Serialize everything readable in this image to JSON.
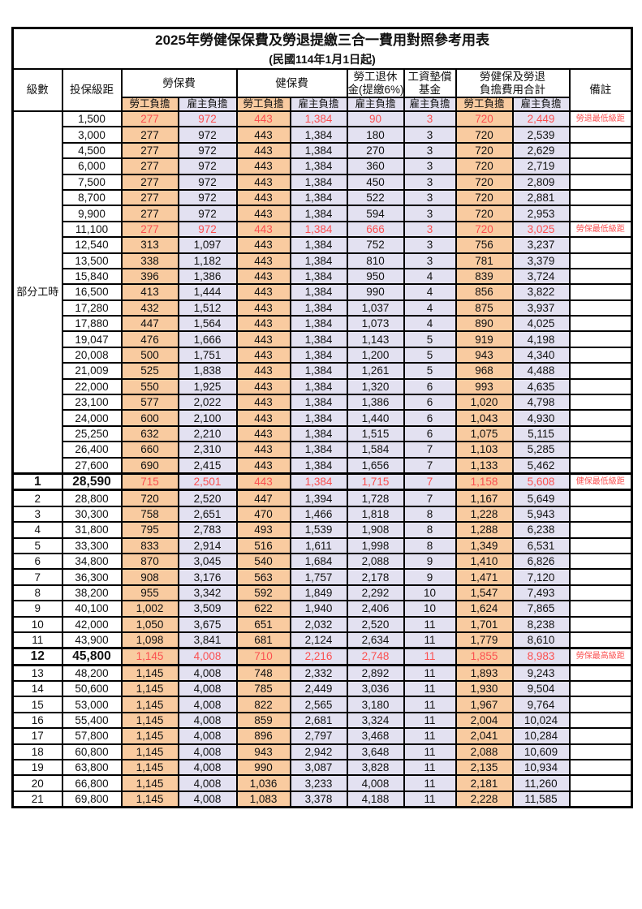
{
  "title": "2025年勞健保保費及勞退提繳三合一費用對照參考用表",
  "subtitle": "(民國114年1月1日起)",
  "colors": {
    "worker_fill": "#F9CBA0",
    "employer_fill": "#E3E1F1",
    "highlight_text": "#FB5050",
    "border": "#000000"
  },
  "table": {
    "header": {
      "level": "級數",
      "bracket": "投保級距",
      "labor_insurance": "勞保費",
      "health_insurance": "健保費",
      "pension_line1": "勞工退休",
      "pension_line2": "金(提繳6%)",
      "wage_fund_line1": "工資墊償",
      "wage_fund_line2": "基金",
      "total_line1": "勞健保及勞退",
      "total_line2": "負擔費用合計",
      "remark": "備註",
      "worker": "勞工負擔",
      "employer": "雇主負擔"
    },
    "part_time_label": "部分工時",
    "part_time_rowspan": 23,
    "rows": [
      {
        "level": "",
        "bracket": "1,500",
        "values": [
          "277",
          "972",
          "443",
          "1,384",
          "90",
          "3",
          "720",
          "2,449"
        ],
        "remark": "勞退最低級距",
        "red": true,
        "em": false
      },
      {
        "level": "",
        "bracket": "3,000",
        "values": [
          "277",
          "972",
          "443",
          "1,384",
          "180",
          "3",
          "720",
          "2,539"
        ],
        "remark": "",
        "red": false,
        "em": false
      },
      {
        "level": "",
        "bracket": "4,500",
        "values": [
          "277",
          "972",
          "443",
          "1,384",
          "270",
          "3",
          "720",
          "2,629"
        ],
        "remark": "",
        "red": false,
        "em": false
      },
      {
        "level": "",
        "bracket": "6,000",
        "values": [
          "277",
          "972",
          "443",
          "1,384",
          "360",
          "3",
          "720",
          "2,719"
        ],
        "remark": "",
        "red": false,
        "em": false
      },
      {
        "level": "",
        "bracket": "7,500",
        "values": [
          "277",
          "972",
          "443",
          "1,384",
          "450",
          "3",
          "720",
          "2,809"
        ],
        "remark": "",
        "red": false,
        "em": false
      },
      {
        "level": "",
        "bracket": "8,700",
        "values": [
          "277",
          "972",
          "443",
          "1,384",
          "522",
          "3",
          "720",
          "2,881"
        ],
        "remark": "",
        "red": false,
        "em": false
      },
      {
        "level": "",
        "bracket": "9,900",
        "values": [
          "277",
          "972",
          "443",
          "1,384",
          "594",
          "3",
          "720",
          "2,953"
        ],
        "remark": "",
        "red": false,
        "em": false
      },
      {
        "level": "",
        "bracket": "11,100",
        "values": [
          "277",
          "972",
          "443",
          "1,384",
          "666",
          "3",
          "720",
          "3,025"
        ],
        "remark": "勞保最低級距",
        "red": true,
        "em": false
      },
      {
        "level": "",
        "bracket": "12,540",
        "values": [
          "313",
          "1,097",
          "443",
          "1,384",
          "752",
          "3",
          "756",
          "3,237"
        ],
        "remark": "",
        "red": false,
        "em": false
      },
      {
        "level": "",
        "bracket": "13,500",
        "values": [
          "338",
          "1,182",
          "443",
          "1,384",
          "810",
          "3",
          "781",
          "3,379"
        ],
        "remark": "",
        "red": false,
        "em": false
      },
      {
        "level": "",
        "bracket": "15,840",
        "values": [
          "396",
          "1,386",
          "443",
          "1,384",
          "950",
          "4",
          "839",
          "3,724"
        ],
        "remark": "",
        "red": false,
        "em": false
      },
      {
        "level": "",
        "bracket": "16,500",
        "values": [
          "413",
          "1,444",
          "443",
          "1,384",
          "990",
          "4",
          "856",
          "3,822"
        ],
        "remark": "",
        "red": false,
        "em": false
      },
      {
        "level": "",
        "bracket": "17,280",
        "values": [
          "432",
          "1,512",
          "443",
          "1,384",
          "1,037",
          "4",
          "875",
          "3,937"
        ],
        "remark": "",
        "red": false,
        "em": false
      },
      {
        "level": "",
        "bracket": "17,880",
        "values": [
          "447",
          "1,564",
          "443",
          "1,384",
          "1,073",
          "4",
          "890",
          "4,025"
        ],
        "remark": "",
        "red": false,
        "em": false
      },
      {
        "level": "",
        "bracket": "19,047",
        "values": [
          "476",
          "1,666",
          "443",
          "1,384",
          "1,143",
          "5",
          "919",
          "4,198"
        ],
        "remark": "",
        "red": false,
        "em": false
      },
      {
        "level": "",
        "bracket": "20,008",
        "values": [
          "500",
          "1,751",
          "443",
          "1,384",
          "1,200",
          "5",
          "943",
          "4,340"
        ],
        "remark": "",
        "red": false,
        "em": false
      },
      {
        "level": "",
        "bracket": "21,009",
        "values": [
          "525",
          "1,838",
          "443",
          "1,384",
          "1,261",
          "5",
          "968",
          "4,488"
        ],
        "remark": "",
        "red": false,
        "em": false
      },
      {
        "level": "",
        "bracket": "22,000",
        "values": [
          "550",
          "1,925",
          "443",
          "1,384",
          "1,320",
          "6",
          "993",
          "4,635"
        ],
        "remark": "",
        "red": false,
        "em": false
      },
      {
        "level": "",
        "bracket": "23,100",
        "values": [
          "577",
          "2,022",
          "443",
          "1,384",
          "1,386",
          "6",
          "1,020",
          "4,798"
        ],
        "remark": "",
        "red": false,
        "em": false
      },
      {
        "level": "",
        "bracket": "24,000",
        "values": [
          "600",
          "2,100",
          "443",
          "1,384",
          "1,440",
          "6",
          "1,043",
          "4,930"
        ],
        "remark": "",
        "red": false,
        "em": false
      },
      {
        "level": "",
        "bracket": "25,250",
        "values": [
          "632",
          "2,210",
          "443",
          "1,384",
          "1,515",
          "6",
          "1,075",
          "5,115"
        ],
        "remark": "",
        "red": false,
        "em": false
      },
      {
        "level": "",
        "bracket": "26,400",
        "values": [
          "660",
          "2,310",
          "443",
          "1,384",
          "1,584",
          "7",
          "1,103",
          "5,285"
        ],
        "remark": "",
        "red": false,
        "em": false
      },
      {
        "level": "",
        "bracket": "27,600",
        "values": [
          "690",
          "2,415",
          "443",
          "1,384",
          "1,656",
          "7",
          "1,133",
          "5,462"
        ],
        "remark": "",
        "red": false,
        "em": false
      },
      {
        "level": "1",
        "bracket": "28,590",
        "values": [
          "715",
          "2,501",
          "443",
          "1,384",
          "1,715",
          "7",
          "1,158",
          "5,608"
        ],
        "remark": "健保最低級距",
        "red": true,
        "em": true
      },
      {
        "level": "2",
        "bracket": "28,800",
        "values": [
          "720",
          "2,520",
          "447",
          "1,394",
          "1,728",
          "7",
          "1,167",
          "5,649"
        ],
        "remark": "",
        "red": false,
        "em": false
      },
      {
        "level": "3",
        "bracket": "30,300",
        "values": [
          "758",
          "2,651",
          "470",
          "1,466",
          "1,818",
          "8",
          "1,228",
          "5,943"
        ],
        "remark": "",
        "red": false,
        "em": false
      },
      {
        "level": "4",
        "bracket": "31,800",
        "values": [
          "795",
          "2,783",
          "493",
          "1,539",
          "1,908",
          "8",
          "1,288",
          "6,238"
        ],
        "remark": "",
        "red": false,
        "em": false
      },
      {
        "level": "5",
        "bracket": "33,300",
        "values": [
          "833",
          "2,914",
          "516",
          "1,611",
          "1,998",
          "8",
          "1,349",
          "6,531"
        ],
        "remark": "",
        "red": false,
        "em": false
      },
      {
        "level": "6",
        "bracket": "34,800",
        "values": [
          "870",
          "3,045",
          "540",
          "1,684",
          "2,088",
          "9",
          "1,410",
          "6,826"
        ],
        "remark": "",
        "red": false,
        "em": false
      },
      {
        "level": "7",
        "bracket": "36,300",
        "values": [
          "908",
          "3,176",
          "563",
          "1,757",
          "2,178",
          "9",
          "1,471",
          "7,120"
        ],
        "remark": "",
        "red": false,
        "em": false
      },
      {
        "level": "8",
        "bracket": "38,200",
        "values": [
          "955",
          "3,342",
          "592",
          "1,849",
          "2,292",
          "10",
          "1,547",
          "7,493"
        ],
        "remark": "",
        "red": false,
        "em": false
      },
      {
        "level": "9",
        "bracket": "40,100",
        "values": [
          "1,002",
          "3,509",
          "622",
          "1,940",
          "2,406",
          "10",
          "1,624",
          "7,865"
        ],
        "remark": "",
        "red": false,
        "em": false
      },
      {
        "level": "10",
        "bracket": "42,000",
        "values": [
          "1,050",
          "3,675",
          "651",
          "2,032",
          "2,520",
          "11",
          "1,701",
          "8,238"
        ],
        "remark": "",
        "red": false,
        "em": false
      },
      {
        "level": "11",
        "bracket": "43,900",
        "values": [
          "1,098",
          "3,841",
          "681",
          "2,124",
          "2,634",
          "11",
          "1,779",
          "8,610"
        ],
        "remark": "",
        "red": false,
        "em": false
      },
      {
        "level": "12",
        "bracket": "45,800",
        "values": [
          "1,145",
          "4,008",
          "710",
          "2,216",
          "2,748",
          "11",
          "1,855",
          "8,983"
        ],
        "remark": "勞保最高級距",
        "red": true,
        "em": true
      },
      {
        "level": "13",
        "bracket": "48,200",
        "values": [
          "1,145",
          "4,008",
          "748",
          "2,332",
          "2,892",
          "11",
          "1,893",
          "9,243"
        ],
        "remark": "",
        "red": false,
        "em": false
      },
      {
        "level": "14",
        "bracket": "50,600",
        "values": [
          "1,145",
          "4,008",
          "785",
          "2,449",
          "3,036",
          "11",
          "1,930",
          "9,504"
        ],
        "remark": "",
        "red": false,
        "em": false
      },
      {
        "level": "15",
        "bracket": "53,000",
        "values": [
          "1,145",
          "4,008",
          "822",
          "2,565",
          "3,180",
          "11",
          "1,967",
          "9,764"
        ],
        "remark": "",
        "red": false,
        "em": false
      },
      {
        "level": "16",
        "bracket": "55,400",
        "values": [
          "1,145",
          "4,008",
          "859",
          "2,681",
          "3,324",
          "11",
          "2,004",
          "10,024"
        ],
        "remark": "",
        "red": false,
        "em": false
      },
      {
        "level": "17",
        "bracket": "57,800",
        "values": [
          "1,145",
          "4,008",
          "896",
          "2,797",
          "3,468",
          "11",
          "2,041",
          "10,284"
        ],
        "remark": "",
        "red": false,
        "em": false
      },
      {
        "level": "18",
        "bracket": "60,800",
        "values": [
          "1,145",
          "4,008",
          "943",
          "2,942",
          "3,648",
          "11",
          "2,088",
          "10,609"
        ],
        "remark": "",
        "red": false,
        "em": false
      },
      {
        "level": "19",
        "bracket": "63,800",
        "values": [
          "1,145",
          "4,008",
          "990",
          "3,087",
          "3,828",
          "11",
          "2,135",
          "10,934"
        ],
        "remark": "",
        "red": false,
        "em": false
      },
      {
        "level": "20",
        "bracket": "66,800",
        "values": [
          "1,145",
          "4,008",
          "1,036",
          "3,233",
          "4,008",
          "11",
          "2,181",
          "11,260"
        ],
        "remark": "",
        "red": false,
        "em": false
      },
      {
        "level": "21",
        "bracket": "69,800",
        "values": [
          "1,145",
          "4,008",
          "1,083",
          "3,378",
          "4,188",
          "11",
          "2,228",
          "11,585"
        ],
        "remark": "",
        "red": false,
        "em": false
      }
    ]
  }
}
